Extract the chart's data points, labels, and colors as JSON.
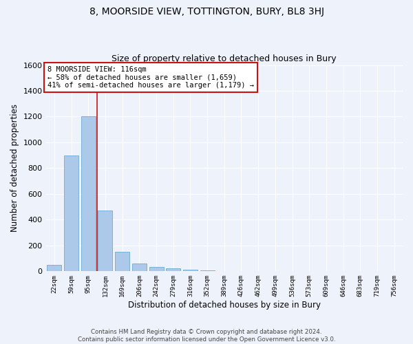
{
  "title": "8, MOORSIDE VIEW, TOTTINGTON, BURY, BL8 3HJ",
  "subtitle": "Size of property relative to detached houses in Bury",
  "xlabel": "Distribution of detached houses by size in Bury",
  "ylabel": "Number of detached properties",
  "footer_line1": "Contains HM Land Registry data © Crown copyright and database right 2024.",
  "footer_line2": "Contains public sector information licensed under the Open Government Licence v3.0.",
  "annotation_line1": "8 MOORSIDE VIEW: 116sqm",
  "annotation_line2": "← 58% of detached houses are smaller (1,659)",
  "annotation_line3": "41% of semi-detached houses are larger (1,179) →",
  "bar_labels": [
    "22sqm",
    "59sqm",
    "95sqm",
    "132sqm",
    "169sqm",
    "206sqm",
    "242sqm",
    "279sqm",
    "316sqm",
    "352sqm",
    "389sqm",
    "426sqm",
    "462sqm",
    "499sqm",
    "536sqm",
    "573sqm",
    "609sqm",
    "646sqm",
    "683sqm",
    "719sqm",
    "756sqm"
  ],
  "bar_values": [
    50,
    900,
    1200,
    470,
    150,
    60,
    35,
    25,
    15,
    8,
    3,
    0,
    0,
    0,
    0,
    0,
    0,
    0,
    0,
    0,
    0
  ],
  "bar_color": "#adc9ea",
  "bar_edge_color": "#6aaad4",
  "redline_x": 2.5,
  "ylim": [
    0,
    1600
  ],
  "yticks": [
    0,
    200,
    400,
    600,
    800,
    1000,
    1200,
    1400,
    1600
  ],
  "bg_color": "#eef2fa",
  "grid_color": "#ffffff",
  "annotation_box_facecolor": "#ffffff",
  "annotation_box_edgecolor": "#cc1111",
  "redline_color": "#cc1111",
  "title_fontsize": 10,
  "subtitle_fontsize": 9
}
